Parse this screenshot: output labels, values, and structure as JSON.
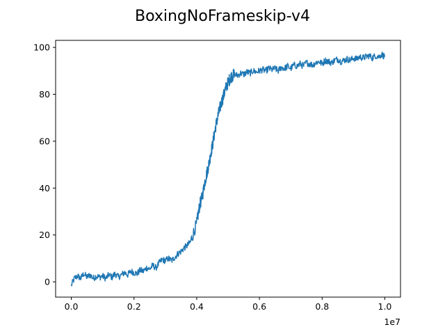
{
  "chart_data": {
    "type": "line",
    "title": "BoxingNoFrameskip-v4",
    "subtitle": "",
    "xlabel": "",
    "ylabel": "",
    "x_offset_label": "1e7",
    "xlim": [
      -0.05,
      1.05
    ],
    "ylim": [
      -6.5,
      103
    ],
    "x_ticks": [
      0.0,
      0.2,
      0.4,
      0.6,
      0.8,
      1.0
    ],
    "x_tick_labels": [
      "0.0",
      "0.2",
      "0.4",
      "0.6",
      "0.8",
      "1.0"
    ],
    "y_ticks": [
      0,
      20,
      40,
      60,
      80,
      100
    ],
    "y_tick_labels": [
      "0",
      "20",
      "40",
      "60",
      "80",
      "100"
    ],
    "grid": false,
    "legend": "none",
    "line_color": "#1f77b4",
    "series": [
      {
        "x": [
          0.0,
          0.01,
          0.02,
          0.03,
          0.04,
          0.05,
          0.06,
          0.07,
          0.08,
          0.09,
          0.1,
          0.11,
          0.12,
          0.13,
          0.14,
          0.15,
          0.16,
          0.17,
          0.18,
          0.19,
          0.2,
          0.21,
          0.22,
          0.23,
          0.24,
          0.25,
          0.26,
          0.27,
          0.28,
          0.29,
          0.3,
          0.31,
          0.32,
          0.33,
          0.34,
          0.35,
          0.36,
          0.37,
          0.38,
          0.39,
          0.4,
          0.405,
          0.41,
          0.415,
          0.42,
          0.425,
          0.43,
          0.435,
          0.44,
          0.445,
          0.45,
          0.455,
          0.46,
          0.465,
          0.47,
          0.475,
          0.48,
          0.485,
          0.49,
          0.495,
          0.5,
          0.505,
          0.51,
          0.515,
          0.52,
          0.53,
          0.54,
          0.55,
          0.56,
          0.57,
          0.58,
          0.59,
          0.6,
          0.61,
          0.62,
          0.63,
          0.64,
          0.65,
          0.66,
          0.67,
          0.68,
          0.69,
          0.7,
          0.71,
          0.72,
          0.73,
          0.74,
          0.75,
          0.76,
          0.77,
          0.78,
          0.79,
          0.8,
          0.81,
          0.82,
          0.83,
          0.84,
          0.85,
          0.86,
          0.87,
          0.88,
          0.89,
          0.9,
          0.91,
          0.92,
          0.93,
          0.94,
          0.95,
          0.96,
          0.97,
          0.98,
          0.99,
          1.0
        ],
        "y": [
          -1.5,
          1.5,
          2.5,
          1.5,
          3.5,
          2.0,
          3.0,
          1.5,
          2.5,
          2.0,
          2.5,
          1.5,
          3.0,
          2.0,
          3.5,
          2.0,
          3.0,
          4.0,
          3.0,
          4.5,
          4.0,
          3.5,
          5.0,
          4.5,
          6.0,
          5.5,
          7.0,
          6.0,
          8.0,
          9.5,
          9.0,
          10.0,
          9.0,
          10.5,
          12.0,
          13.0,
          14.5,
          15.5,
          17.0,
          21.0,
          25.0,
          29.0,
          33.0,
          35.0,
          38.0,
          42.0,
          45.0,
          48.0,
          51.0,
          55.0,
          58.0,
          62.0,
          66.0,
          69.0,
          72.0,
          74.5,
          77.0,
          79.0,
          81.5,
          83.5,
          85.0,
          86.5,
          87.5,
          88.0,
          88.5,
          88.0,
          89.0,
          88.5,
          89.5,
          89.0,
          90.0,
          89.5,
          90.0,
          90.5,
          90.0,
          91.0,
          90.5,
          91.0,
          90.0,
          91.5,
          91.0,
          92.0,
          91.0,
          92.5,
          92.0,
          93.0,
          92.0,
          93.5,
          93.0,
          92.5,
          93.5,
          94.0,
          93.0,
          94.5,
          94.0,
          93.5,
          94.5,
          95.0,
          94.0,
          94.5,
          95.0,
          94.5,
          95.5,
          95.0,
          96.0,
          95.5,
          96.0,
          96.5,
          95.5,
          96.5,
          96.0,
          97.0,
          96.0
        ]
      }
    ]
  }
}
